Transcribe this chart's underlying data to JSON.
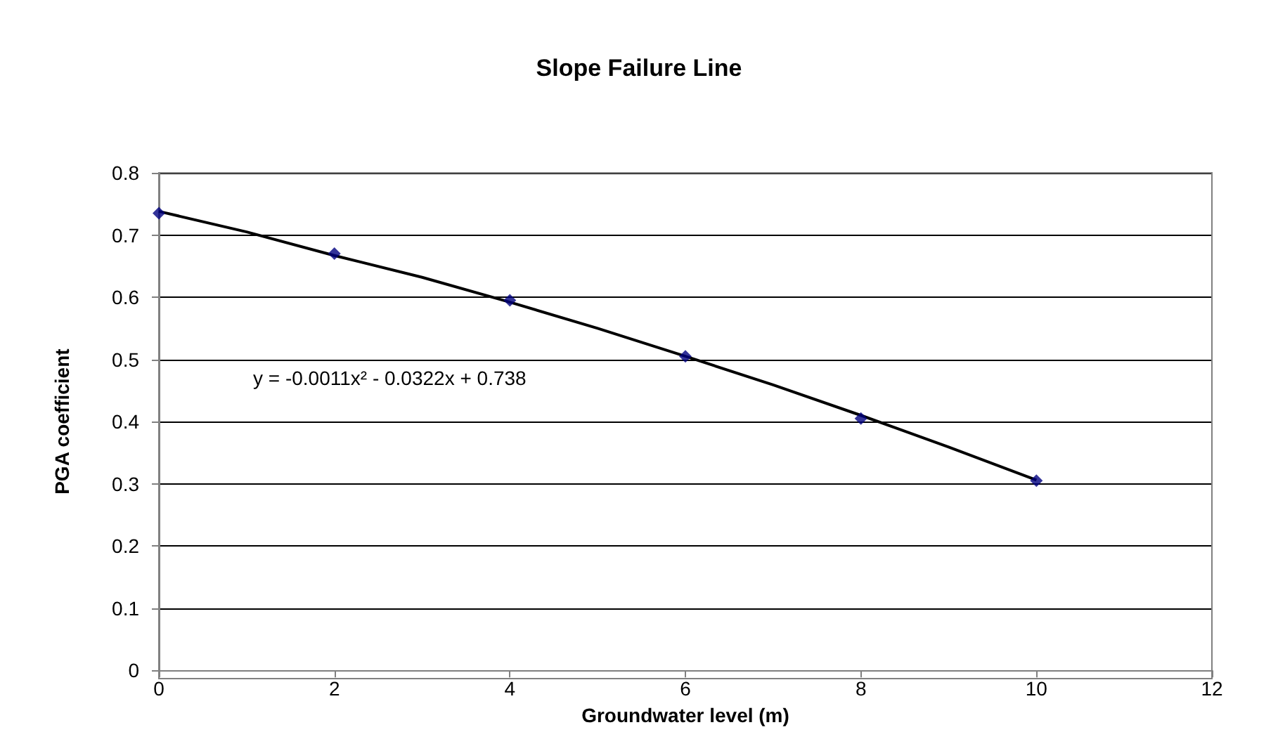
{
  "chart_data": {
    "type": "scatter",
    "title": "Slope Failure Line",
    "xlabel": "Groundwater level (m)",
    "ylabel": "PGA coefficient",
    "series": [
      {
        "color": "#000080",
        "marker": "diamond",
        "x": [
          0,
          2,
          4,
          6,
          8,
          10
        ],
        "values": [
          0.735,
          0.67,
          0.595,
          0.505,
          0.405,
          0.305
        ]
      },
      {
        "type": "line",
        "marker": "none",
        "color": "#000000",
        "x": [
          0,
          1,
          2,
          3,
          4,
          5,
          6,
          7,
          8,
          9,
          10
        ],
        "values": [
          0.738,
          0.705,
          0.667,
          0.632,
          0.592,
          0.55,
          0.505,
          0.459,
          0.41,
          0.359,
          0.306
        ]
      }
    ],
    "xlim": [
      0,
      12
    ],
    "xticks": [
      0,
      2,
      4,
      6,
      8,
      10,
      12
    ],
    "ylim": [
      0,
      0.8
    ],
    "yticks": [
      0,
      0.1,
      0.2,
      0.3,
      0.4,
      0.5,
      0.6,
      0.7,
      0.8
    ],
    "grid": "y",
    "annotations": [
      "y = -0.0011x² - 0.0322x + 0.738"
    ]
  }
}
